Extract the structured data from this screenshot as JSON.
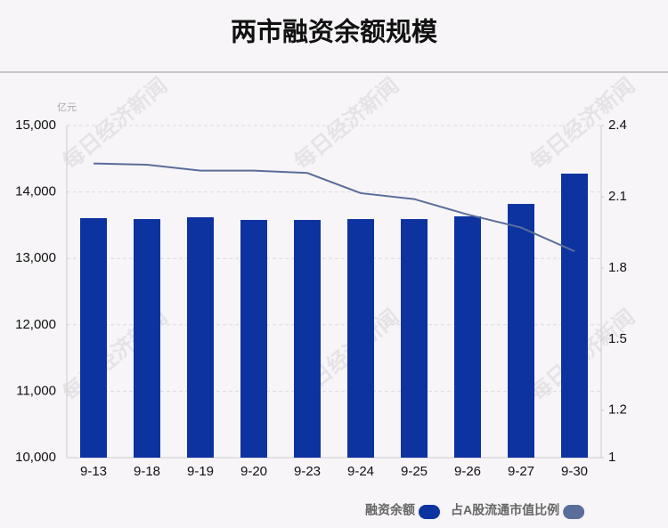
{
  "chart_data": {
    "type": "bar-line",
    "title": "两市融资余额规模",
    "y_unit": "亿元",
    "watermark": "每日经济新闻",
    "categories": [
      "9-13",
      "9-18",
      "9-19",
      "9-20",
      "9-23",
      "9-24",
      "9-25",
      "9-26",
      "9-27",
      "9-30"
    ],
    "series": [
      {
        "name": "融资余额",
        "type": "bar",
        "color": "#0d33a0",
        "values": [
          13606,
          13592,
          13619,
          13579,
          13579,
          13592,
          13592,
          13633,
          13820,
          14276
        ]
      },
      {
        "name": "占A股流通市值比例",
        "type": "line",
        "axis": "y2",
        "color": "#5a6e9a",
        "values": [
          2.24,
          2.235,
          2.21,
          2.21,
          2.2,
          2.115,
          2.09,
          2.025,
          1.97,
          1.87
        ]
      }
    ],
    "ylim": [
      10000,
      15000
    ],
    "yticks": [
      {
        "value": 10000,
        "label": "10,000"
      },
      {
        "value": 11000,
        "label": "11,000"
      },
      {
        "value": 12000,
        "label": "12,000"
      },
      {
        "value": 13000,
        "label": "13,000"
      },
      {
        "value": 14000,
        "label": "14,000"
      },
      {
        "value": 15000,
        "label": "15,000"
      }
    ],
    "y2lim": [
      1,
      2.4
    ],
    "y2ticks": [
      1,
      1.2,
      1.5,
      1.8,
      2.1,
      2.4
    ],
    "grid": true
  }
}
